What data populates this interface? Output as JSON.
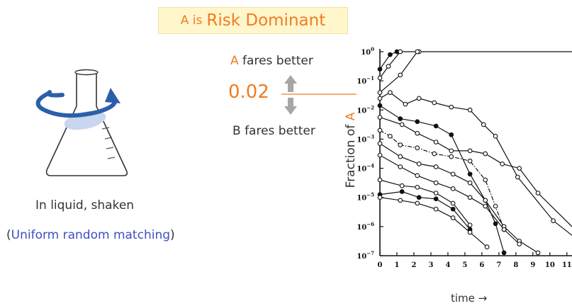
{
  "title": {
    "prefix": "A is",
    "main": "Risk Dominant"
  },
  "threshold": {
    "upper_letter": "A",
    "upper_rest": " fares better",
    "value": "0.02",
    "lower_label": "B fares better"
  },
  "flask": {
    "caption": "In liquid, shaken",
    "note_open": "(",
    "note_text": "Uniform random matching",
    "note_close": ")"
  },
  "colors": {
    "accent": "#ef7d22",
    "note_blue": "#3d4fc5",
    "arrow_blue": "#2b5fa8",
    "liquid": "#c8d6ef"
  },
  "chart_data": {
    "type": "line",
    "y_label_prefix": "Fraction of ",
    "y_label_letter": "A",
    "x_label": "time →",
    "x_ticks": [
      "0",
      "1",
      "2",
      "3",
      "4",
      "5",
      "6",
      "7",
      "8",
      "9",
      "10",
      "11"
    ],
    "y_ticks": [
      {
        "base": "10",
        "exp": "0"
      },
      {
        "base": "10",
        "exp": "−1"
      },
      {
        "base": "10",
        "exp": "−2"
      },
      {
        "base": "10",
        "exp": "−3"
      },
      {
        "base": "10",
        "exp": "−4"
      },
      {
        "base": "10",
        "exp": "−5"
      },
      {
        "base": "10",
        "exp": "−6"
      },
      {
        "base": "10",
        "exp": "−7"
      }
    ],
    "xlim": [
      0,
      11.3
    ],
    "ylim_log10": [
      -7,
      0
    ],
    "y_scale": "log",
    "series": [
      {
        "marker": "filled",
        "dash": false,
        "points": [
          [
            0,
            -0.6
          ],
          [
            0.6,
            -0.1
          ],
          [
            1,
            0
          ]
        ]
      },
      {
        "marker": "open",
        "dash": false,
        "points": [
          [
            0,
            -0.9
          ],
          [
            0.5,
            -0.5
          ],
          [
            1.2,
            0
          ],
          [
            2.3,
            0
          ],
          [
            11.3,
            0
          ]
        ]
      },
      {
        "marker": "open",
        "dash": false,
        "points": [
          [
            0,
            -1.4
          ],
          [
            1.2,
            -0.8
          ],
          [
            2.2,
            0
          ]
        ]
      },
      {
        "marker": "open",
        "dash": false,
        "points": [
          [
            0,
            -1.6
          ],
          [
            0.6,
            -1.4
          ],
          [
            1.5,
            -1.8
          ],
          [
            2.3,
            -1.6
          ],
          [
            3.2,
            -1.75
          ],
          [
            4.2,
            -1.9
          ],
          [
            5.3,
            -2.0
          ],
          [
            6.1,
            -2.5
          ],
          [
            6.8,
            -2.9
          ],
          [
            8.1,
            -4.3
          ],
          [
            10.2,
            -5.8
          ],
          [
            11.3,
            -6.3
          ]
        ]
      },
      {
        "marker": "filled",
        "dash": false,
        "points": [
          [
            0,
            -1.85
          ],
          [
            1.2,
            -2.3
          ],
          [
            2.2,
            -2.4
          ],
          [
            3.3,
            -2.55
          ],
          [
            4.2,
            -2.85
          ],
          [
            5.3,
            -4.2
          ],
          [
            6.2,
            -5.1
          ],
          [
            6.8,
            -5.9
          ],
          [
            7.3,
            -6.9
          ]
        ]
      },
      {
        "marker": "open",
        "dash": false,
        "points": [
          [
            0,
            -2.25
          ],
          [
            1.3,
            -2.5
          ],
          [
            2.2,
            -2.8
          ],
          [
            3.3,
            -3.1
          ],
          [
            4.2,
            -3.4
          ],
          [
            5.3,
            -3.4
          ],
          [
            6.2,
            -3.5
          ],
          [
            7.2,
            -3.85
          ],
          [
            8.2,
            -4.0
          ],
          [
            9.3,
            -4.85
          ],
          [
            11.3,
            -6.0
          ]
        ]
      },
      {
        "marker": "open",
        "dash": true,
        "points": [
          [
            0,
            -2.7
          ],
          [
            0.6,
            -2.9
          ],
          [
            1.2,
            -3.2
          ],
          [
            2.2,
            -3.3
          ],
          [
            3.2,
            -3.5
          ],
          [
            4.2,
            -3.6
          ],
          [
            5.3,
            -3.75
          ],
          [
            6.2,
            -4.4
          ],
          [
            6.8,
            -5.3
          ],
          [
            7.3,
            -6.1
          ]
        ]
      },
      {
        "marker": "open",
        "dash": false,
        "points": [
          [
            0,
            -3.15
          ],
          [
            1.2,
            -3.6
          ],
          [
            2.3,
            -3.85
          ],
          [
            3.3,
            -3.95
          ],
          [
            4.3,
            -4.2
          ],
          [
            5.3,
            -4.5
          ],
          [
            6.2,
            -5.1
          ],
          [
            7.3,
            -6.0
          ],
          [
            8.2,
            -6.5
          ],
          [
            9.3,
            -6.9
          ]
        ]
      },
      {
        "marker": "open",
        "dash": false,
        "points": [
          [
            0,
            -3.55
          ],
          [
            1.2,
            -3.95
          ],
          [
            2.2,
            -4.25
          ],
          [
            3.3,
            -4.5
          ],
          [
            4.3,
            -4.7
          ],
          [
            5.3,
            -5.0
          ],
          [
            6.2,
            -5.3
          ],
          [
            7.3,
            -6.1
          ],
          [
            8.2,
            -6.6
          ]
        ]
      },
      {
        "marker": "open",
        "dash": false,
        "points": [
          [
            0,
            -4.4
          ],
          [
            1.3,
            -4.6
          ],
          [
            2.2,
            -4.65
          ],
          [
            3.3,
            -4.85
          ],
          [
            4.3,
            -5.2
          ],
          [
            5.3,
            -5.95
          ]
        ]
      },
      {
        "marker": "filled",
        "dash": false,
        "points": [
          [
            0,
            -4.9
          ],
          [
            1.3,
            -4.8
          ],
          [
            2.3,
            -5.0
          ],
          [
            3.3,
            -5.05
          ],
          [
            4.3,
            -5.4
          ],
          [
            5.3,
            -6.1
          ]
        ]
      },
      {
        "marker": "open",
        "dash": false,
        "points": [
          [
            0,
            -5.0
          ],
          [
            1.2,
            -5.1
          ],
          [
            2.2,
            -5.2
          ],
          [
            3.3,
            -5.4
          ],
          [
            4.3,
            -5.7
          ],
          [
            5.3,
            -6.2
          ],
          [
            6.3,
            -6.7
          ]
        ]
      }
    ]
  }
}
